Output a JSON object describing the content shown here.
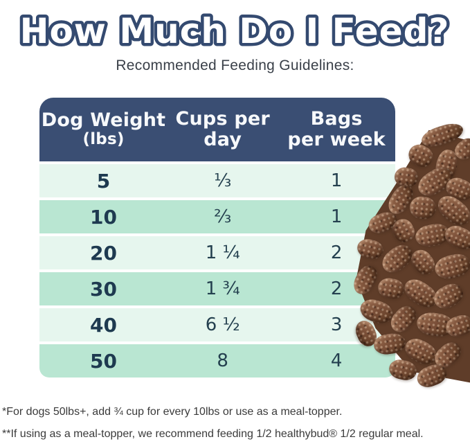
{
  "page": {
    "title": "How Much Do I Feed?",
    "subtitle": "Recommended Feeding Guidelines:"
  },
  "table": {
    "columns": [
      {
        "line1": "Dog Weight",
        "line2": "(lbs)"
      },
      {
        "line1": "Cups per",
        "line2": "day"
      },
      {
        "line1": "Bags",
        "line2": "per week"
      }
    ],
    "rows": [
      {
        "dog_weight_lbs": "5",
        "cups_per_day": "⅓",
        "bags_per_week": "1"
      },
      {
        "dog_weight_lbs": "10",
        "cups_per_day": "⅔",
        "bags_per_week": "1"
      },
      {
        "dog_weight_lbs": "20",
        "cups_per_day": "1 ¼",
        "bags_per_week": "2"
      },
      {
        "dog_weight_lbs": "30",
        "cups_per_day": "1 ¾",
        "bags_per_week": "2"
      },
      {
        "dog_weight_lbs": "40",
        "cups_per_day": "6 ½",
        "bags_per_week": "3"
      },
      {
        "dog_weight_lbs": "50",
        "cups_per_day": "8",
        "bags_per_week": "4"
      }
    ]
  },
  "footnotes": [
    "*For dogs 50lbs+, add ¾ cup for every 10lbs or use as a meal-topper.",
    "**If using as a meal-topper, we recommend feeding 1/2 healthybud® 1/2 regular meal."
  ],
  "colors": {
    "header_navy": "#3a4e73",
    "title_outline_navy": "#344a70",
    "row_light_mint": "#e6f6ee",
    "row_dark_mint": "#b9e6d2",
    "table_text_navy": "#1e3a50",
    "body_text_gray": "#3a3a3a",
    "kibble_brown": "#7a4f38"
  },
  "decorations": {
    "kibble_photo": "pile of brown dog-food kibble pellets on the right side"
  }
}
